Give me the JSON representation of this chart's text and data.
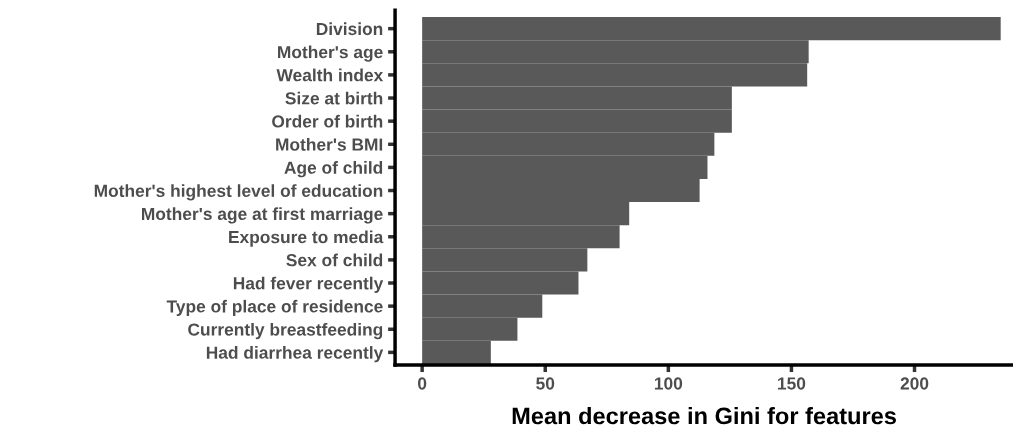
{
  "chart_data": {
    "type": "bar",
    "orientation": "horizontal",
    "xlabel": "Mean decrease in Gini for features",
    "categories": [
      "Division",
      "Mother's age",
      "Wealth index",
      "Size at birth",
      "Order of birth",
      "Mother's BMI",
      "Age of child",
      "Mother's highest level of education",
      "Mother's age at first marriage",
      "Exposure to media",
      "Sex of child",
      "Had fever recently",
      "Type of place of residence",
      "Currently breastfeeding",
      "Had diarrhea recently"
    ],
    "values": [
      235,
      157,
      156.4,
      125.8,
      125.8,
      118.7,
      115.9,
      112.7,
      84.1,
      80.2,
      67.1,
      63.5,
      48.8,
      38.7,
      27.9
    ],
    "color": "#595959",
    "xlim": [
      -11,
      240
    ],
    "xticks": [
      0,
      50,
      100,
      150,
      200
    ],
    "grid": false,
    "legend": false
  }
}
